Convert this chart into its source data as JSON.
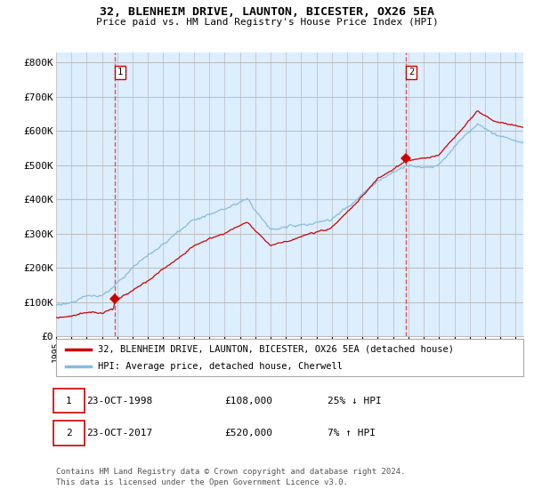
{
  "title": "32, BLENHEIM DRIVE, LAUNTON, BICESTER, OX26 5EA",
  "subtitle": "Price paid vs. HM Land Registry's House Price Index (HPI)",
  "ylabel_ticks": [
    "£0",
    "£100K",
    "£200K",
    "£300K",
    "£400K",
    "£500K",
    "£600K",
    "£700K",
    "£800K"
  ],
  "ytick_values": [
    0,
    100000,
    200000,
    300000,
    400000,
    500000,
    600000,
    700000,
    800000
  ],
  "ylim": [
    0,
    830000
  ],
  "xlim_start": 1995.0,
  "xlim_end": 2025.5,
  "sale1_date": 1998.81,
  "sale1_price": 108000,
  "sale1_label": "1",
  "sale2_date": 2017.81,
  "sale2_price": 520000,
  "sale2_label": "2",
  "sale1_row": "23-OCT-1998",
  "sale1_price_str": "£108,000",
  "sale1_hpi_str": "25% ↓ HPI",
  "sale2_row": "23-OCT-2017",
  "sale2_price_str": "£520,000",
  "sale2_hpi_str": "7% ↑ HPI",
  "line_color_property": "#cc0000",
  "line_color_hpi": "#88bbdd",
  "chart_bg": "#ddeeff",
  "marker_color": "#cc0000",
  "vline_color": "#dd4444",
  "legend_label_property": "32, BLENHEIM DRIVE, LAUNTON, BICESTER, OX26 5EA (detached house)",
  "legend_label_hpi": "HPI: Average price, detached house, Cherwell",
  "footnote1": "Contains HM Land Registry data © Crown copyright and database right 2024.",
  "footnote2": "This data is licensed under the Open Government Licence v3.0.",
  "background_color": "#ffffff",
  "grid_color": "#bbbbbb"
}
